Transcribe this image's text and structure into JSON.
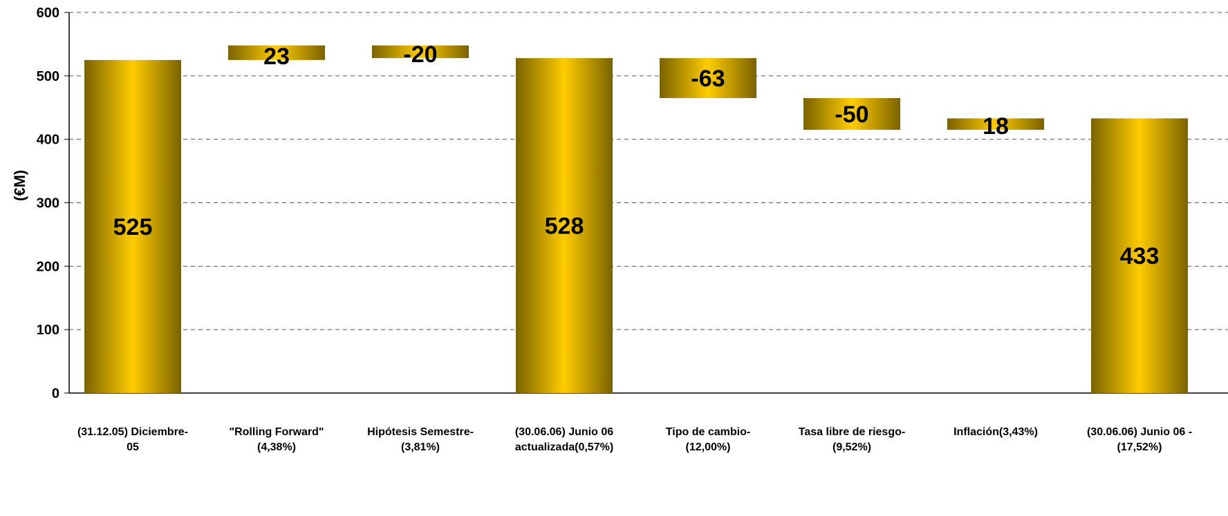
{
  "chart_data": {
    "type": "bar",
    "subtype": "waterfall",
    "ylabel": "(€M)",
    "ylim": [
      0,
      600
    ],
    "yticks": [
      0,
      100,
      200,
      300,
      400,
      500,
      600
    ],
    "grid": true,
    "categories": [
      [
        "(31.12.05) Diciembre-",
        "05"
      ],
      [
        "\"Rolling Forward\"",
        "(4,38%)"
      ],
      [
        "Hipótesis Semestre-",
        "(3,81%)"
      ],
      [
        "(30.06.06) Junio 06",
        "actualizada(0,57%)"
      ],
      [
        "Tipo de cambio-",
        "(12,00%)"
      ],
      [
        "Tasa libre de riesgo-",
        "(9,52%)"
      ],
      [
        "Inflación(3,43%)"
      ],
      [
        "(30.06.06) Junio 06 -",
        "(17,52%)"
      ]
    ],
    "bars": [
      {
        "label": "525",
        "kind": "total",
        "bottom": 0,
        "top": 525
      },
      {
        "label": "23",
        "kind": "delta",
        "bottom": 525,
        "top": 548
      },
      {
        "label": "-20",
        "kind": "delta",
        "bottom": 528,
        "top": 548
      },
      {
        "label": "528",
        "kind": "total",
        "bottom": 0,
        "top": 528
      },
      {
        "label": "-63",
        "kind": "delta",
        "bottom": 465,
        "top": 528
      },
      {
        "label": "-50",
        "kind": "delta",
        "bottom": 415,
        "top": 465
      },
      {
        "label": "18",
        "kind": "delta",
        "bottom": 415,
        "top": 433
      },
      {
        "label": "433",
        "kind": "total",
        "bottom": 0,
        "top": 433
      }
    ],
    "colors": {
      "bar_edge": "#7a6200",
      "bar_mid": "#ffcc00",
      "grid": "#555555",
      "axis": "#000000"
    }
  }
}
